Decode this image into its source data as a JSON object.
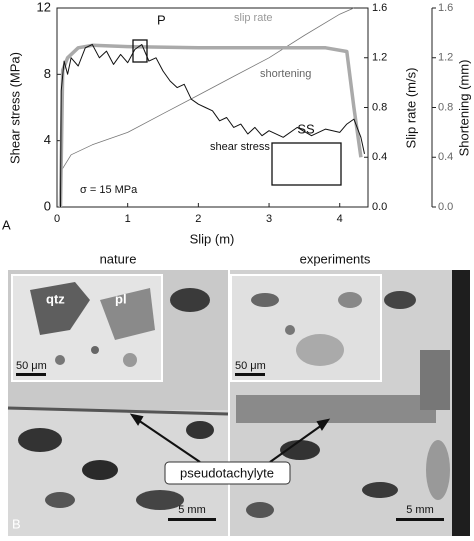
{
  "chart_data": {
    "type": "line",
    "xlabel": "Slip (m)",
    "ylabel": "Shear stress (MPa)",
    "y2label": "Slip rate (m/s)",
    "y3label": "Shortening (mm)",
    "xlim": [
      0,
      4.4
    ],
    "xticks": [
      0,
      1,
      2,
      3,
      4
    ],
    "ylim": [
      0,
      12
    ],
    "yticks": [
      0,
      4,
      8,
      12
    ],
    "y2lim": [
      0,
      1.6
    ],
    "y2ticks": [
      {
        "value": 0,
        "label": "0.0"
      },
      {
        "value": 0.4,
        "label": "0.4"
      },
      {
        "value": 0.8,
        "label": "0.8"
      },
      {
        "value": 1.2,
        "label": "1.2"
      },
      {
        "value": 1.6,
        "label": "1.6"
      }
    ],
    "y3lim": [
      0,
      1.6
    ],
    "y3ticks": [
      {
        "value": 0,
        "label": "0.0"
      },
      {
        "value": 0.4,
        "label": "0.4"
      },
      {
        "value": 0.8,
        "label": "0.8"
      },
      {
        "value": 1.2,
        "label": "1.2"
      },
      {
        "value": 1.6,
        "label": "1.6"
      }
    ],
    "annotations": [
      "P",
      "SS",
      "σ = 15 MPa"
    ],
    "series": [
      {
        "name": "shear stress",
        "color": "#111111",
        "x": [
          0.05,
          0.06,
          0.1,
          0.15,
          0.2,
          0.3,
          0.4,
          0.5,
          0.6,
          0.7,
          0.8,
          0.9,
          1.0,
          1.1,
          1.2,
          1.3,
          1.4,
          1.5,
          1.6,
          1.7,
          1.8,
          1.9,
          2.0,
          2.1,
          2.2,
          2.3,
          2.4,
          2.5,
          2.6,
          2.7,
          2.8,
          2.9,
          3.0,
          3.2,
          3.4,
          3.6,
          3.8,
          4.0,
          4.1,
          4.2,
          4.3,
          4.35
        ],
        "values": [
          0,
          7,
          8.8,
          8,
          9,
          8.5,
          9.6,
          9.8,
          9,
          9.4,
          8.6,
          9.2,
          8.7,
          9.5,
          9.8,
          8.8,
          9,
          8.2,
          7.6,
          7.2,
          7.4,
          6.5,
          6.2,
          6,
          5.8,
          5.2,
          5.4,
          4.8,
          5,
          4.4,
          4.8,
          4.3,
          4.6,
          4.2,
          4.8,
          4.3,
          4.7,
          4.5,
          5,
          5.3,
          4.2,
          3.2
        ]
      },
      {
        "name": "slip rate",
        "color": "#aaaaaa",
        "axis": "y2",
        "x": [
          0.05,
          0.08,
          0.15,
          0.3,
          0.5,
          1.0,
          2.0,
          3.0,
          3.8,
          4.1,
          4.2,
          4.3
        ],
        "values": [
          0,
          1.1,
          1.2,
          1.28,
          1.3,
          1.29,
          1.28,
          1.28,
          1.28,
          1.25,
          0.8,
          0.4
        ]
      },
      {
        "name": "shortening",
        "color": "#777777",
        "axis": "y3",
        "x": [
          0.05,
          0.07,
          0.2,
          0.5,
          1.0,
          1.5,
          2.0,
          2.5,
          3.0,
          3.5,
          4.0,
          4.2
        ],
        "values": [
          0,
          0.3,
          0.42,
          0.5,
          0.6,
          0.75,
          0.9,
          1.05,
          1.2,
          1.38,
          1.55,
          1.6
        ]
      }
    ]
  },
  "panel_a_label": "A",
  "panel_b": {
    "label": "B",
    "left_title": "nature",
    "right_title": "experiments",
    "mineral_labels": [
      "qtz",
      "pl"
    ],
    "inset_scales": [
      "50 μm",
      "50 μm"
    ],
    "scales": [
      "5 mm",
      "5 mm"
    ],
    "arrow_label": "pseudotachylyte"
  }
}
